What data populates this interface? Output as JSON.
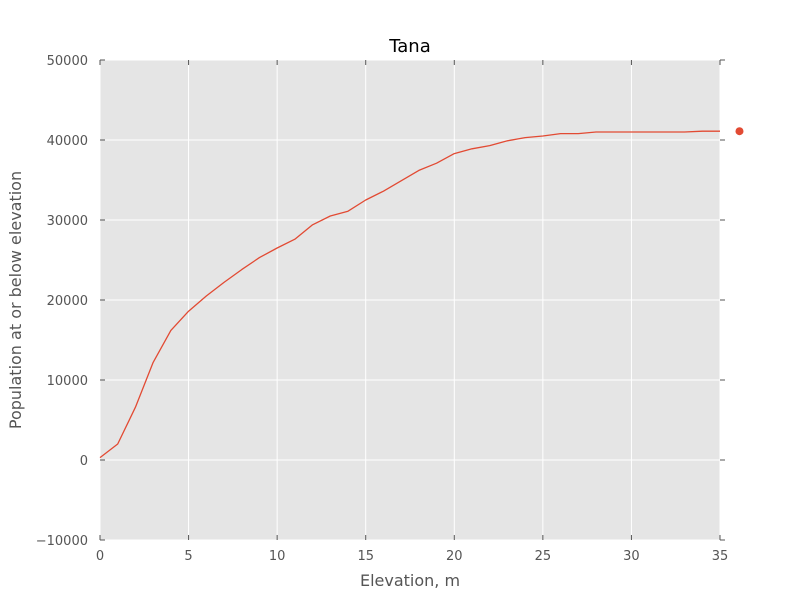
{
  "chart_data": {
    "type": "line",
    "title": "Tana",
    "xlabel": "Elevation, m",
    "ylabel": "Population at or below elevation",
    "xlim": [
      0,
      35
    ],
    "ylim": [
      -10000,
      50000
    ],
    "x_ticks": [
      0,
      5,
      10,
      15,
      20,
      25,
      30,
      35
    ],
    "y_ticks": [
      -10000,
      0,
      10000,
      20000,
      30000,
      40000,
      50000
    ],
    "x_tick_labels": [
      "0",
      "5",
      "10",
      "15",
      "20",
      "25",
      "30",
      "35"
    ],
    "y_tick_labels": [
      "−10000",
      "0",
      "10000",
      "20000",
      "30000",
      "40000",
      "50000"
    ],
    "grid": true,
    "background_color": "#e5e5e5",
    "grid_color": "#ffffff",
    "series": [
      {
        "color": "#e24a33",
        "x": [
          0,
          1,
          2,
          3,
          4,
          5,
          6,
          7,
          8,
          9,
          10,
          11,
          12,
          13,
          14,
          15,
          16,
          17,
          18,
          19,
          20,
          21,
          22,
          23,
          24,
          25,
          26,
          27,
          28,
          29,
          30,
          31,
          32,
          33,
          34,
          35
        ],
        "y": [
          300,
          2000,
          6600,
          12200,
          16200,
          18600,
          20500,
          22200,
          23800,
          25300,
          26500,
          27600,
          29400,
          30500,
          31100,
          32500,
          33600,
          34900,
          36200,
          37100,
          38300,
          38900,
          39300,
          39900,
          40300,
          40500,
          40800,
          40800,
          41000,
          41000,
          41000,
          41000,
          41000,
          41000,
          41100,
          41100
        ]
      }
    ],
    "extra_points": [
      {
        "x": 36.1,
        "y": 41100,
        "color": "#e24a33"
      }
    ]
  }
}
